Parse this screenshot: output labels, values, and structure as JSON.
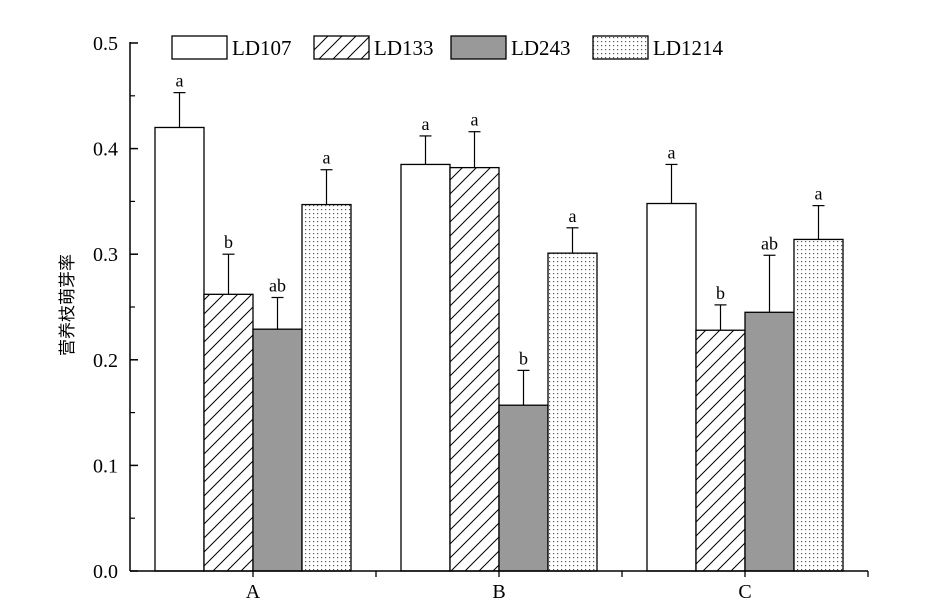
{
  "chart_data": {
    "type": "bar",
    "title": "",
    "xlabel": "",
    "ylabel": "营养枝萌芽率",
    "ylim": [
      0,
      0.5
    ],
    "yticks": [
      "0.0",
      "0.1",
      "0.2",
      "0.3",
      "0.4",
      "0.5"
    ],
    "grid": false,
    "legend": "top",
    "categories": [
      "A",
      "B",
      "C"
    ],
    "series": [
      {
        "name": "LD107",
        "pattern": "white",
        "values": [
          0.42,
          0.385,
          0.348
        ],
        "errors": [
          0.033,
          0.027,
          0.037
        ],
        "letters": [
          "a",
          "a",
          "a"
        ]
      },
      {
        "name": "LD133",
        "pattern": "hatch",
        "values": [
          0.262,
          0.382,
          0.228
        ],
        "errors": [
          0.038,
          0.034,
          0.024
        ],
        "letters": [
          "b",
          "a",
          "b"
        ]
      },
      {
        "name": "LD243",
        "pattern": "gray",
        "values": [
          0.229,
          0.157,
          0.245
        ],
        "errors": [
          0.03,
          0.033,
          0.054
        ],
        "letters": [
          "ab",
          "b",
          "ab"
        ]
      },
      {
        "name": "LD1214",
        "pattern": "dots",
        "values": [
          0.347,
          0.301,
          0.314
        ],
        "errors": [
          0.033,
          0.024,
          0.032
        ],
        "letters": [
          "a",
          "a",
          "a"
        ]
      }
    ]
  }
}
